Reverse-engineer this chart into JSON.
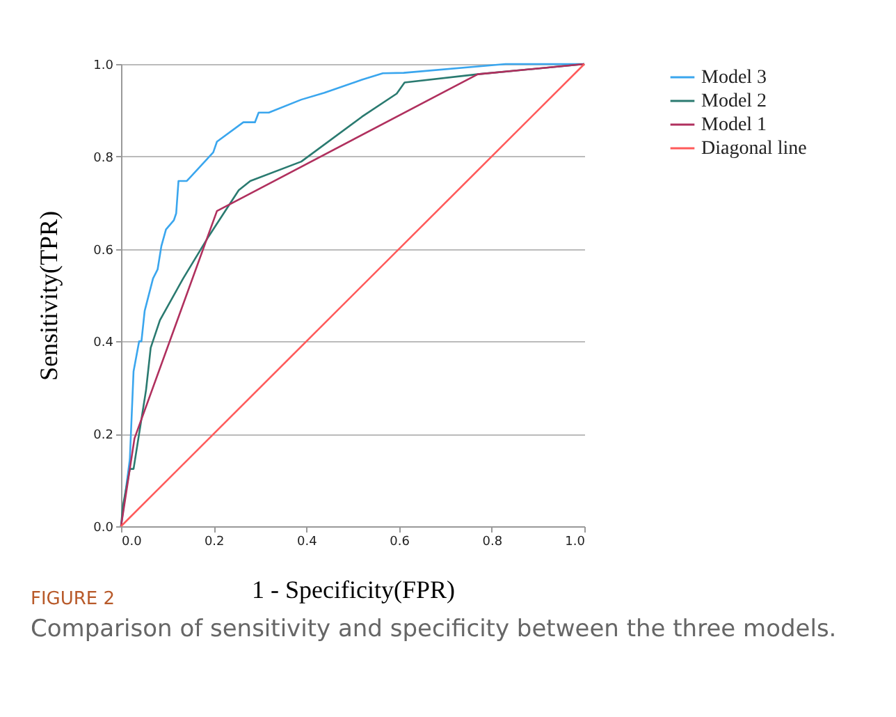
{
  "chart_data": {
    "type": "line",
    "xlabel": "1   -   Specificity(FPR)",
    "ylabel": "Sensitivity(TPR)",
    "annotations": [
      "FIGURE 2",
      "Comparison of sensitivity and specificity between the three models."
    ],
    "series": [
      {
        "name": "Model 3",
        "color": "#3aa6ee",
        "x": [
          0,
          0.019,
          0.027,
          0.039,
          0.044,
          0.051,
          0.069,
          0.079,
          0.087,
          0.097,
          0.114,
          0.119,
          0.124,
          0.142,
          0.199,
          0.207,
          0.264,
          0.289,
          0.297,
          0.319,
          0.389,
          0.439,
          0.52,
          0.565,
          0.61,
          0.83,
          1
        ],
        "values": [
          0,
          0.145,
          0.335,
          0.4,
          0.4,
          0.466,
          0.536,
          0.556,
          0.606,
          0.642,
          0.662,
          0.677,
          0.747,
          0.747,
          0.809,
          0.832,
          0.874,
          0.874,
          0.895,
          0.895,
          0.923,
          0.938,
          0.966,
          0.98,
          0.981,
          1,
          1
        ]
      },
      {
        "name": "Model 2",
        "color": "#2a7a70",
        "x": [
          0,
          0.004,
          0.019,
          0.027,
          0.054,
          0.064,
          0.084,
          0.134,
          0.189,
          0.254,
          0.279,
          0.389,
          0.52,
          0.595,
          0.612,
          0.77,
          1
        ],
        "values": [
          0,
          0.044,
          0.124,
          0.124,
          0.295,
          0.386,
          0.446,
          0.536,
          0.627,
          0.727,
          0.747,
          0.789,
          0.886,
          0.936,
          0.96,
          0.978,
          1
        ]
      },
      {
        "name": "Model 1",
        "color": "#b0305e",
        "x": [
          0,
          0.029,
          0.207,
          0.77,
          1
        ],
        "values": [
          0,
          0.19,
          0.682,
          0.978,
          1
        ]
      },
      {
        "name": "Diagonal line",
        "color": "#ff5a5a",
        "x": [
          0,
          1
        ],
        "values": [
          0,
          1
        ]
      }
    ],
    "xlim": [
      0,
      1
    ],
    "ylim": [
      0,
      1
    ],
    "xticks": [
      {
        "value": 0,
        "label": "0.0"
      },
      0.2,
      0.4,
      0.6,
      0.8,
      {
        "value": 1,
        "label": "1.0"
      }
    ],
    "yticks": [
      {
        "value": 0,
        "label": "0.0"
      },
      0.2,
      0.4,
      0.6,
      0.8,
      {
        "value": 1,
        "label": "1.0"
      }
    ],
    "grid": "y",
    "legend": "right",
    "marker": "none",
    "line_style": "solid"
  }
}
